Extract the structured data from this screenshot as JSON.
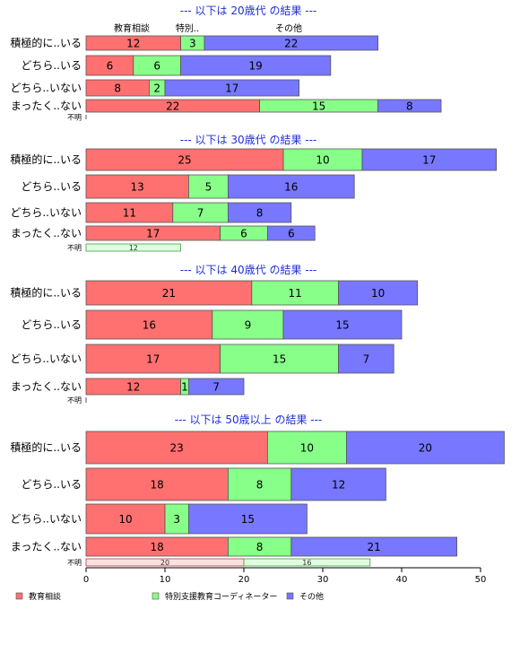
{
  "chart_data": {
    "type": "bar",
    "orientation": "horizontal",
    "stacked": true,
    "series_names": [
      "教育相談",
      "特別支援教育コーディネーター",
      "その他"
    ],
    "series_header_labels": [
      "教育相談",
      "特別..",
      "その他"
    ],
    "colors": [
      "#ff7070",
      "#88ff88",
      "#7777ff"
    ],
    "xlim": [
      0,
      50
    ],
    "xticks": [
      0,
      10,
      20,
      30,
      40,
      50
    ],
    "legend_position": "bottom",
    "grid": false,
    "groups": [
      {
        "title": "--- 以下は 20歳代 の結果 ---",
        "categories": [
          "積極的に..いる",
          "どちら..いる",
          "どちら..いない",
          "まったく..ない",
          "不明"
        ],
        "values": [
          [
            12,
            3,
            22
          ],
          [
            6,
            6,
            19
          ],
          [
            8,
            2,
            17
          ],
          [
            22,
            15,
            8
          ],
          [
            0,
            0,
            0
          ]
        ]
      },
      {
        "title": "--- 以下は 30歳代 の結果 ---",
        "categories": [
          "積極的に..いる",
          "どちら..いる",
          "どちら..いない",
          "まったく..ない",
          "不明"
        ],
        "values": [
          [
            25,
            10,
            17
          ],
          [
            13,
            5,
            16
          ],
          [
            11,
            7,
            8
          ],
          [
            17,
            6,
            6
          ],
          [
            0,
            12,
            0
          ]
        ]
      },
      {
        "title": "--- 以下は 40歳代 の結果 ---",
        "categories": [
          "積極的に..いる",
          "どちら..いる",
          "どちら..いない",
          "まったく..ない",
          "不明"
        ],
        "values": [
          [
            21,
            11,
            10
          ],
          [
            16,
            9,
            15
          ],
          [
            17,
            15,
            7
          ],
          [
            12,
            1,
            7
          ],
          [
            0,
            0,
            0
          ]
        ]
      },
      {
        "title": "--- 以下は 50歳以上 の結果 ---",
        "categories": [
          "積極的に..いる",
          "どちら..いる",
          "どちら..いない",
          "まったく..ない",
          "不明"
        ],
        "values": [
          [
            23,
            10,
            20
          ],
          [
            18,
            8,
            12
          ],
          [
            10,
            3,
            15
          ],
          [
            18,
            8,
            21
          ],
          [
            20,
            16,
            0
          ]
        ]
      }
    ]
  }
}
